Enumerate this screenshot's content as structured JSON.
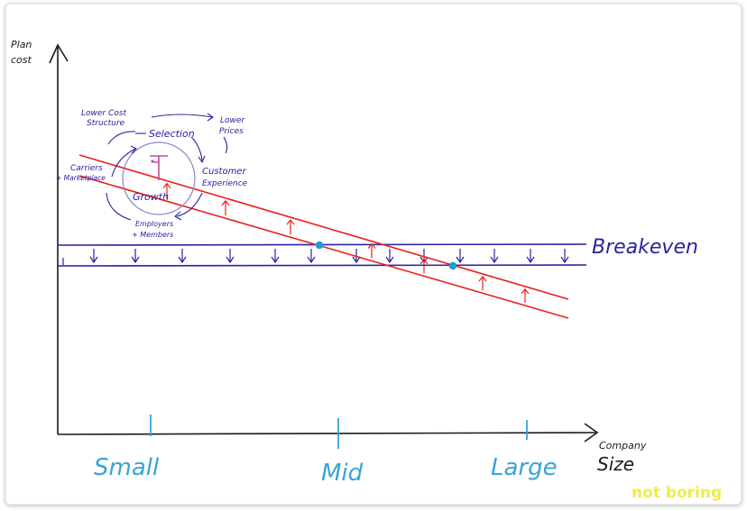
{
  "axes": {
    "y_label_line1": "Plan",
    "y_label_line2": "cost",
    "x_label_line1": "Company",
    "x_label_line2": "Size",
    "ticks": [
      "Small",
      "Mid",
      "Large"
    ]
  },
  "lines": {
    "breakeven_label": "Breakeven"
  },
  "flywheel": {
    "center": "Growth",
    "nodes": [
      "Lower Cost",
      "Structure",
      "Selection",
      "Lower",
      "Prices",
      "Customer",
      "Experience",
      "Employers",
      "+ Members",
      "Carriers",
      "+ Marketplace"
    ]
  },
  "brand": "not boring",
  "colors": {
    "axis": "#1a1a1a",
    "breakeven": "#2b22a0",
    "cost_curve": "#e8201d",
    "tick_label": "#3aa3d6",
    "intersection": "#1e9ad8",
    "flywheel_ring": "#8a86c8",
    "logo": "#c0509e",
    "brand": "#f0ec4a"
  }
}
